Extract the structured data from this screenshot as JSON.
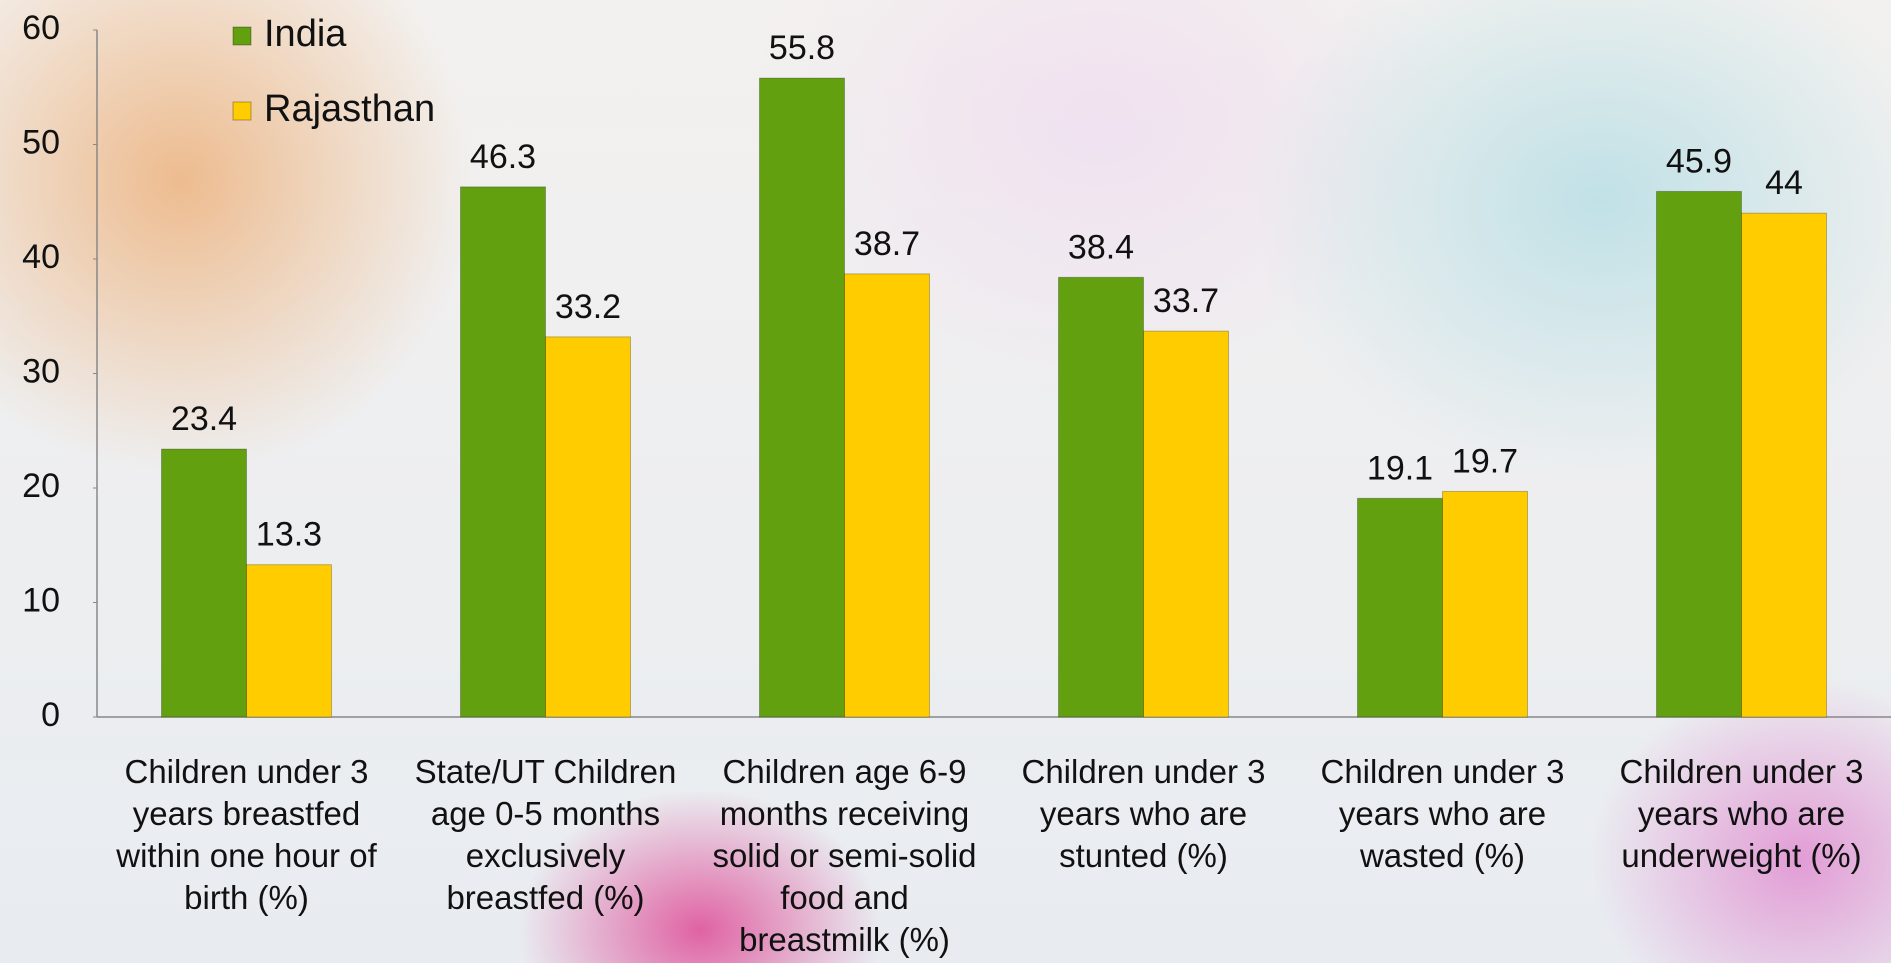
{
  "chart_data": {
    "type": "bar",
    "categories": [
      "Children under 3 years breastfed within one hour of birth (%)",
      "State/UT Children age 0-5 months exclusively breastfed (%)",
      "Children age 6-9 months receiving solid or semi-solid food and breastmilk (%)",
      "Children under 3 years who are stunted (%)",
      "Children under 3 years who are wasted (%)",
      "Children under 3 years who are underweight (%)"
    ],
    "series": [
      {
        "name": "India",
        "color": "#62a010",
        "values": [
          23.4,
          46.3,
          55.8,
          38.4,
          19.1,
          45.9
        ]
      },
      {
        "name": "Rajasthan",
        "color": "#ffcc00",
        "values": [
          13.3,
          33.2,
          38.7,
          33.7,
          19.7,
          44
        ]
      }
    ],
    "ylim": [
      0,
      60
    ],
    "yticks": [
      0,
      10,
      20,
      30,
      40,
      50,
      60
    ],
    "legend": "top-left"
  }
}
